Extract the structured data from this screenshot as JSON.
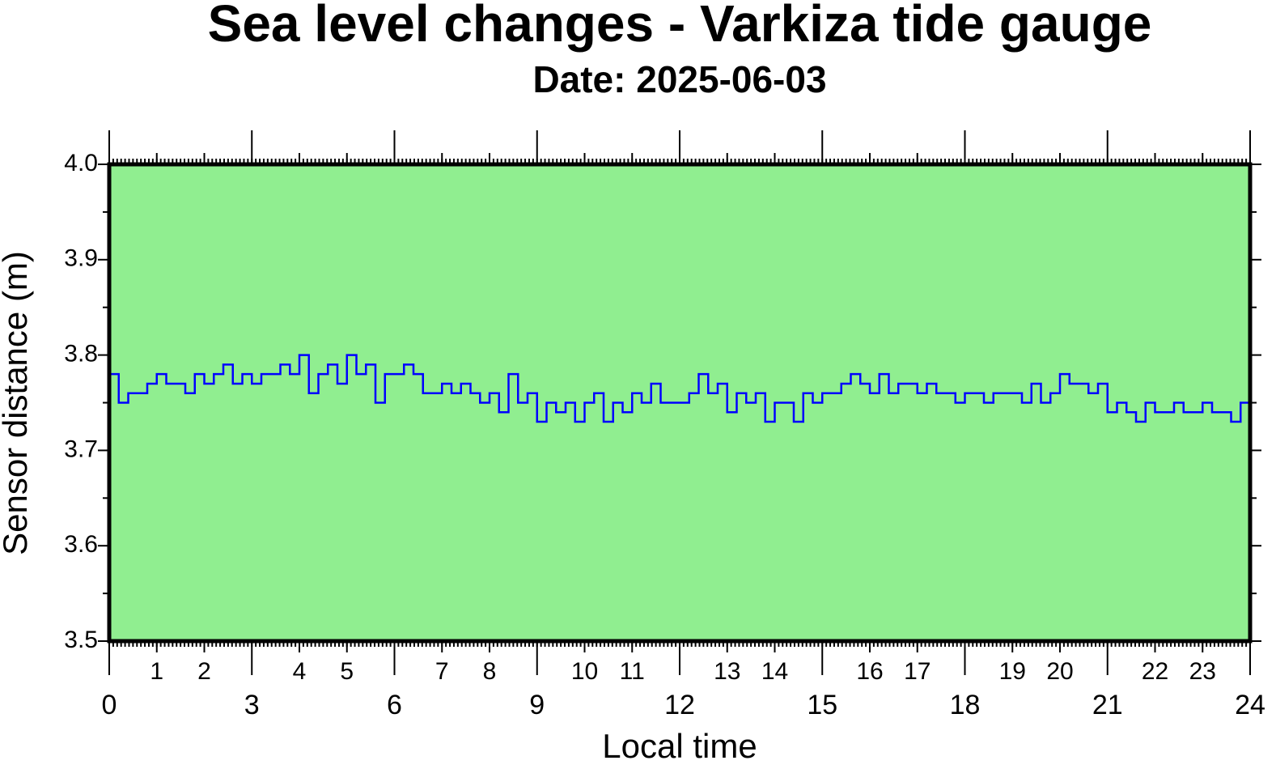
{
  "chart_data": {
    "type": "line",
    "title": "Sea level changes - Varkiza tide gauge",
    "subtitle": "Date: 2025-06-03",
    "x_label": "Local time",
    "y_label": "Sensor distance (m)",
    "x": [
      0,
      0.2,
      0.4,
      0.6,
      0.8,
      1,
      1.2,
      1.4,
      1.6,
      1.8,
      2,
      2.2,
      2.4,
      2.6,
      2.8,
      3,
      3.2,
      3.4,
      3.6,
      3.8,
      4,
      4.2,
      4.4,
      4.6,
      4.8,
      5,
      5.2,
      5.4,
      5.6,
      5.8,
      6,
      6.2,
      6.4,
      6.6,
      6.8,
      7,
      7.2,
      7.4,
      7.6,
      7.8,
      8,
      8.2,
      8.4,
      8.6,
      8.8,
      9,
      9.2,
      9.4,
      9.6,
      9.8,
      10,
      10.2,
      10.4,
      10.6,
      10.8,
      11,
      11.2,
      11.4,
      11.6,
      11.8,
      12,
      12.2,
      12.4,
      12.6,
      12.8,
      13,
      13.2,
      13.4,
      13.6,
      13.8,
      14,
      14.2,
      14.4,
      14.6,
      14.8,
      15,
      15.2,
      15.4,
      15.6,
      15.8,
      16,
      16.2,
      16.4,
      16.6,
      16.8,
      17,
      17.2,
      17.4,
      17.6,
      17.8,
      18,
      18.2,
      18.4,
      18.6,
      18.8,
      19,
      19.2,
      19.4,
      19.6,
      19.8,
      20,
      20.2,
      20.4,
      20.6,
      20.8,
      21,
      21.2,
      21.4,
      21.6,
      21.8,
      22,
      22.2,
      22.4,
      22.6,
      22.8,
      23,
      23.2,
      23.4,
      23.6,
      23.8,
      24
    ],
    "series": [
      {
        "name": "Sensor distance",
        "color": "#0000ff",
        "values": [
          3.78,
          3.75,
          3.76,
          3.76,
          3.77,
          3.78,
          3.77,
          3.77,
          3.76,
          3.78,
          3.77,
          3.78,
          3.79,
          3.77,
          3.78,
          3.77,
          3.78,
          3.78,
          3.79,
          3.78,
          3.8,
          3.76,
          3.78,
          3.79,
          3.77,
          3.8,
          3.78,
          3.79,
          3.75,
          3.78,
          3.78,
          3.79,
          3.78,
          3.76,
          3.76,
          3.77,
          3.76,
          3.77,
          3.76,
          3.75,
          3.76,
          3.74,
          3.78,
          3.75,
          3.76,
          3.73,
          3.75,
          3.74,
          3.75,
          3.73,
          3.75,
          3.76,
          3.73,
          3.75,
          3.74,
          3.76,
          3.75,
          3.77,
          3.75,
          3.75,
          3.75,
          3.76,
          3.78,
          3.76,
          3.77,
          3.74,
          3.76,
          3.75,
          3.76,
          3.73,
          3.75,
          3.75,
          3.73,
          3.76,
          3.75,
          3.76,
          3.76,
          3.77,
          3.78,
          3.77,
          3.76,
          3.78,
          3.76,
          3.77,
          3.77,
          3.76,
          3.77,
          3.76,
          3.76,
          3.75,
          3.76,
          3.76,
          3.75,
          3.76,
          3.76,
          3.76,
          3.75,
          3.77,
          3.75,
          3.76,
          3.78,
          3.77,
          3.77,
          3.76,
          3.77,
          3.74,
          3.75,
          3.74,
          3.73,
          3.75,
          3.74,
          3.74,
          3.75,
          3.74,
          3.74,
          3.75,
          3.74,
          3.74,
          3.73,
          3.75,
          3.74
        ]
      }
    ],
    "xlim": [
      0,
      24
    ],
    "xticks": [
      0,
      3,
      6,
      9,
      12,
      15,
      18,
      21,
      24
    ],
    "xticks_minor": [
      1,
      2,
      4,
      5,
      7,
      8,
      10,
      11,
      13,
      14,
      16,
      17,
      19,
      20,
      22,
      23
    ],
    "ylim": [
      3.5,
      4.0
    ],
    "yticks": [
      3.5,
      3.6,
      3.7,
      3.8,
      3.9,
      {
        "value": 4.0,
        "label": "4.0"
      }
    ],
    "background": "#90ee90"
  }
}
